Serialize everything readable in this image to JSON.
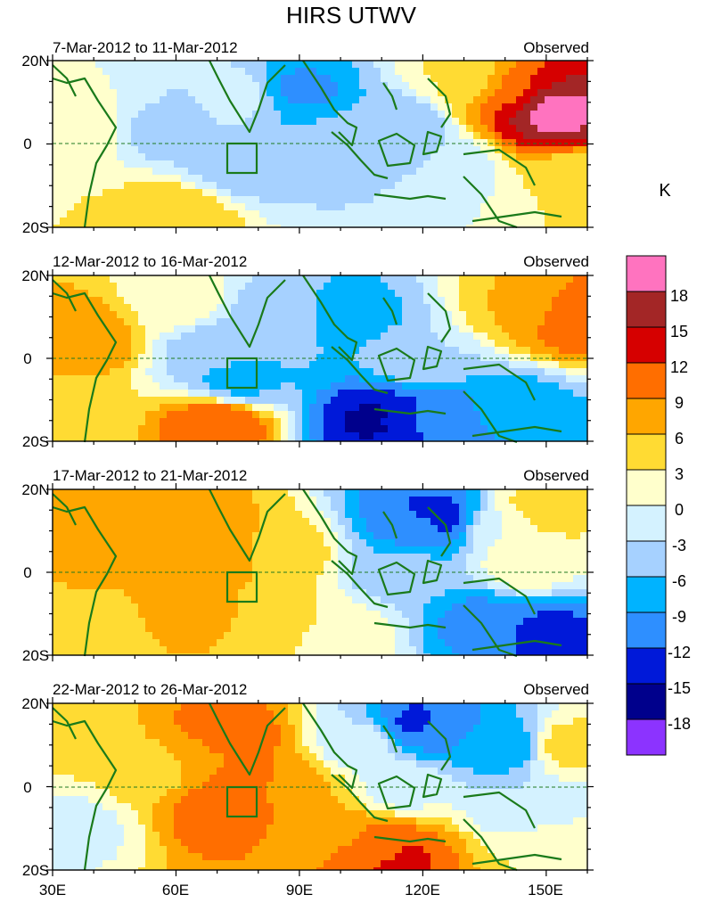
{
  "chart_data": {
    "type": "heatmap",
    "title": "HIRS UTWV",
    "units_label": "K",
    "colorbar": {
      "tick_labels": [
        "18",
        "15",
        "12",
        "9",
        "6",
        "3",
        "0",
        "-3",
        "-6",
        "-9",
        "-12",
        "-15",
        "-18"
      ],
      "levels": [
        18,
        15,
        12,
        9,
        6,
        3,
        0,
        -3,
        -6,
        -9,
        -12,
        -15,
        -18
      ],
      "colors": [
        "#ff73bf",
        "#a32626",
        "#d60000",
        "#ff6e00",
        "#ffa600",
        "#ffdb33",
        "#ffffcc",
        "#d4f2ff",
        "#a6d1ff",
        "#00b3ff",
        "#2e8fff",
        "#0019d9",
        "#00008c",
        "#8c33ff"
      ]
    },
    "x_ticks": [
      "30E",
      "60E",
      "90E",
      "120E",
      "150E"
    ],
    "x_values": [
      30,
      60,
      90,
      120,
      150
    ],
    "xlim": [
      30,
      160
    ],
    "ylim": [
      -20,
      20
    ],
    "y_ticks": [
      "20N",
      "0",
      "20S"
    ],
    "box": {
      "lon": [
        73,
        80
      ],
      "lat": [
        -5,
        5
      ]
    },
    "panels": [
      {
        "date_range": "7-Mar-2012 to 11-Mar-2012",
        "label": "Observed",
        "features": [
          {
            "lon": 35,
            "lat": 5,
            "value": 3
          },
          {
            "lon": 35,
            "lat": -15,
            "value": 3
          },
          {
            "lon": 45,
            "lat": 12,
            "value": 0
          },
          {
            "lon": 60,
            "lat": 5,
            "value": -6
          },
          {
            "lon": 60,
            "lat": -17,
            "value": 6
          },
          {
            "lon": 75,
            "lat": 10,
            "value": 0
          },
          {
            "lon": 85,
            "lat": 8,
            "value": -6
          },
          {
            "lon": 90,
            "lat": 12,
            "value": -10
          },
          {
            "lon": 75,
            "lat": -5,
            "value": -5
          },
          {
            "lon": 100,
            "lat": 0,
            "value": -4
          },
          {
            "lon": 115,
            "lat": 5,
            "value": -6
          },
          {
            "lon": 125,
            "lat": -5,
            "value": -3
          },
          {
            "lon": 130,
            "lat": 15,
            "value": 3
          },
          {
            "lon": 140,
            "lat": 12,
            "value": 9
          },
          {
            "lon": 145,
            "lat": 10,
            "value": 15
          },
          {
            "lon": 150,
            "lat": 8,
            "value": 20
          },
          {
            "lon": 155,
            "lat": -10,
            "value": 3
          }
        ]
      },
      {
        "date_range": "12-Mar-2012 to 16-Mar-2012",
        "label": "Observed",
        "features": [
          {
            "lon": 37,
            "lat": 5,
            "value": 9
          },
          {
            "lon": 35,
            "lat": -15,
            "value": 4
          },
          {
            "lon": 60,
            "lat": 14,
            "value": 2
          },
          {
            "lon": 70,
            "lat": -16,
            "value": 12
          },
          {
            "lon": 75,
            "lat": -5,
            "value": -7
          },
          {
            "lon": 70,
            "lat": 2,
            "value": -5
          },
          {
            "lon": 85,
            "lat": 10,
            "value": -5
          },
          {
            "lon": 103,
            "lat": 10,
            "value": -7
          },
          {
            "lon": 120,
            "lat": 0,
            "value": -3
          },
          {
            "lon": 115,
            "lat": -15,
            "value": -12
          },
          {
            "lon": 110,
            "lat": -15,
            "value": -16
          },
          {
            "lon": 125,
            "lat": -15,
            "value": -11
          },
          {
            "lon": 140,
            "lat": -12,
            "value": -8
          },
          {
            "lon": 145,
            "lat": 12,
            "value": 6
          },
          {
            "lon": 155,
            "lat": 10,
            "value": 12
          }
        ]
      },
      {
        "date_range": "17-Mar-2012 to 21-Mar-2012",
        "label": "Observed",
        "features": [
          {
            "lon": 40,
            "lat": 5,
            "value": 7
          },
          {
            "lon": 35,
            "lat": -15,
            "value": 3
          },
          {
            "lon": 60,
            "lat": 15,
            "value": 7
          },
          {
            "lon": 70,
            "lat": 5,
            "value": 9
          },
          {
            "lon": 65,
            "lat": -10,
            "value": 7
          },
          {
            "lon": 85,
            "lat": 5,
            "value": 5
          },
          {
            "lon": 85,
            "lat": -12,
            "value": 4
          },
          {
            "lon": 100,
            "lat": -15,
            "value": 2
          },
          {
            "lon": 115,
            "lat": 0,
            "value": -5
          },
          {
            "lon": 120,
            "lat": 12,
            "value": -10
          },
          {
            "lon": 122,
            "lat": 13,
            "value": -14
          },
          {
            "lon": 140,
            "lat": 10,
            "value": 0
          },
          {
            "lon": 145,
            "lat": 2,
            "value": 2
          },
          {
            "lon": 150,
            "lat": 15,
            "value": 5
          },
          {
            "lon": 135,
            "lat": -12,
            "value": -10
          },
          {
            "lon": 150,
            "lat": -15,
            "value": -13
          }
        ]
      },
      {
        "date_range": "22-Mar-2012 to 26-Mar-2012",
        "label": "Observed",
        "features": [
          {
            "lon": 35,
            "lat": 15,
            "value": 4
          },
          {
            "lon": 35,
            "lat": -10,
            "value": -1
          },
          {
            "lon": 55,
            "lat": 5,
            "value": 4
          },
          {
            "lon": 65,
            "lat": 8,
            "value": 8
          },
          {
            "lon": 72,
            "lat": 12,
            "value": 12
          },
          {
            "lon": 78,
            "lat": 2,
            "value": 10
          },
          {
            "lon": 73,
            "lat": -5,
            "value": 12
          },
          {
            "lon": 88,
            "lat": 0,
            "value": 7
          },
          {
            "lon": 95,
            "lat": -10,
            "value": 7
          },
          {
            "lon": 110,
            "lat": -15,
            "value": 10
          },
          {
            "lon": 113,
            "lat": -17,
            "value": 13
          },
          {
            "lon": 105,
            "lat": 10,
            "value": -2
          },
          {
            "lon": 115,
            "lat": 0,
            "value": -1
          },
          {
            "lon": 125,
            "lat": 14,
            "value": -9
          },
          {
            "lon": 120,
            "lat": 15,
            "value": -13
          },
          {
            "lon": 140,
            "lat": 10,
            "value": -8
          },
          {
            "lon": 145,
            "lat": -5,
            "value": -3
          },
          {
            "lon": 155,
            "lat": 10,
            "value": 4
          },
          {
            "lon": 150,
            "lat": -15,
            "value": 3
          }
        ]
      }
    ]
  }
}
